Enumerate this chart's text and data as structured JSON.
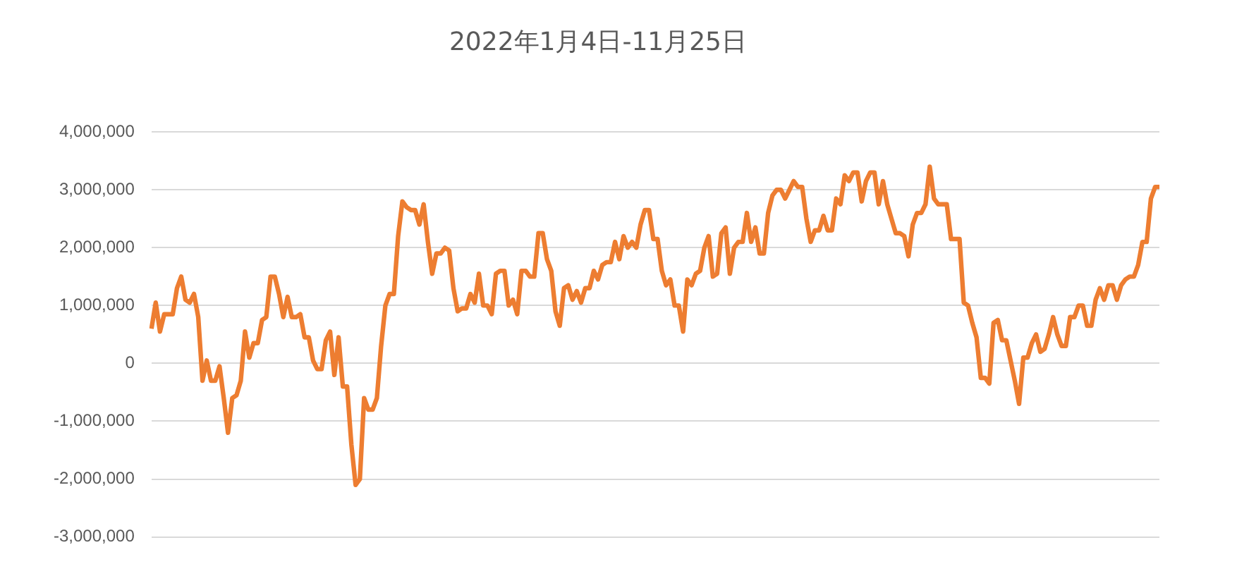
{
  "chart_data": {
    "type": "line",
    "title": "2022年1月4日-11月25日",
    "categories": [
      null,
      null,
      null,
      null,
      null,
      null,
      null,
      null,
      null,
      null,
      null,
      null,
      null,
      null,
      null,
      null,
      null,
      null,
      null,
      null,
      null,
      null,
      null,
      null,
      null,
      null,
      null,
      null,
      null,
      null,
      null,
      null,
      null,
      null,
      null,
      null,
      null,
      null,
      null,
      null,
      null,
      null,
      null,
      null,
      null,
      null,
      null,
      null,
      null,
      null,
      null,
      null,
      null,
      null,
      null,
      null,
      null,
      null,
      null,
      null,
      null,
      null,
      null,
      null,
      null,
      null,
      null,
      null,
      null,
      null,
      null,
      null,
      null,
      null,
      null,
      null,
      null,
      null,
      null,
      null,
      null,
      null,
      null,
      null,
      null,
      null,
      null,
      null,
      null,
      null,
      null,
      null,
      null,
      null,
      null,
      null,
      null,
      null,
      null,
      null,
      null,
      null,
      null,
      null,
      null,
      null,
      null,
      null,
      null,
      null,
      null,
      null,
      null,
      null,
      null,
      null,
      null,
      null,
      null,
      null,
      null,
      null,
      null,
      null,
      null,
      null,
      null,
      null,
      null,
      null,
      null,
      null,
      null,
      null,
      null,
      null,
      null,
      null,
      null,
      null,
      null,
      null,
      null,
      null,
      null,
      null,
      null,
      null,
      null,
      null,
      null,
      null,
      null,
      null,
      null,
      null,
      null,
      null,
      null,
      null,
      null,
      null,
      null,
      null,
      null,
      null,
      null,
      null,
      null,
      null,
      null,
      null,
      null,
      null,
      null,
      null,
      null,
      null,
      null,
      null,
      null,
      null,
      null,
      null,
      null,
      null,
      null,
      null,
      null,
      null,
      null,
      null,
      null,
      null,
      null,
      null,
      null,
      null,
      null,
      null,
      null,
      null,
      null,
      null,
      null,
      null,
      null,
      null,
      null,
      null,
      null,
      null,
      null,
      null,
      null,
      null,
      null,
      null,
      null,
      null,
      null,
      null,
      null,
      null,
      null,
      null,
      null,
      null,
      null,
      null,
      null,
      null,
      null,
      null,
      null,
      null,
      null,
      null
    ],
    "series": [
      {
        "color": "#ed7d31",
        "values": [
          600000,
          1050000,
          550000,
          850000,
          850000,
          850000,
          1300000,
          1500000,
          1100000,
          1050000,
          1200000,
          800000,
          -300000,
          50000,
          -300000,
          -300000,
          -50000,
          -600000,
          -1200000,
          -600000,
          -550000,
          -300000,
          550000,
          100000,
          350000,
          350000,
          750000,
          800000,
          1500000,
          1500000,
          1200000,
          800000,
          1150000,
          800000,
          800000,
          850000,
          450000,
          450000,
          50000,
          -100000,
          -100000,
          400000,
          550000,
          -200000,
          450000,
          -400000,
          -400000,
          -1400000,
          -2100000,
          -2000000,
          -600000,
          -800000,
          -800000,
          -600000,
          300000,
          1000000,
          1200000,
          1200000,
          2200000,
          2800000,
          2700000,
          2650000,
          2650000,
          2400000,
          2750000,
          2100000,
          1550000,
          1900000,
          1900000,
          2000000,
          1950000,
          1300000,
          900000,
          950000,
          950000,
          1200000,
          1050000,
          1550000,
          1000000,
          1000000,
          850000,
          1550000,
          1600000,
          1600000,
          1000000,
          1100000,
          850000,
          1600000,
          1600000,
          1500000,
          1500000,
          2250000,
          2250000,
          1800000,
          1600000,
          900000,
          650000,
          1300000,
          1350000,
          1100000,
          1250000,
          1050000,
          1300000,
          1300000,
          1600000,
          1450000,
          1700000,
          1750000,
          1750000,
          2100000,
          1800000,
          2200000,
          2000000,
          2100000,
          2000000,
          2400000,
          2650000,
          2650000,
          2150000,
          2150000,
          1600000,
          1350000,
          1450000,
          1000000,
          1000000,
          550000,
          1450000,
          1350000,
          1550000,
          1600000,
          2000000,
          2200000,
          1500000,
          1550000,
          2250000,
          2350000,
          1550000,
          2000000,
          2100000,
          2100000,
          2600000,
          2100000,
          2350000,
          1900000,
          1900000,
          2600000,
          2900000,
          3000000,
          3000000,
          2850000,
          3000000,
          3150000,
          3050000,
          3050000,
          2500000,
          2100000,
          2300000,
          2300000,
          2550000,
          2300000,
          2300000,
          2850000,
          2750000,
          3250000,
          3150000,
          3300000,
          3300000,
          2800000,
          3150000,
          3300000,
          3300000,
          2750000,
          3150000,
          2750000,
          2500000,
          2250000,
          2250000,
          2200000,
          1850000,
          2400000,
          2600000,
          2600000,
          2750000,
          3400000,
          2850000,
          2750000,
          2750000,
          2750000,
          2150000,
          2150000,
          2150000,
          1050000,
          1000000,
          700000,
          450000,
          -250000,
          -250000,
          -350000,
          700000,
          750000,
          400000,
          400000,
          50000,
          -300000,
          -700000,
          100000,
          100000,
          350000,
          500000,
          200000,
          250000,
          500000,
          800000,
          500000,
          300000,
          300000,
          800000,
          800000,
          1000000,
          1000000,
          650000,
          650000,
          1100000,
          1300000,
          1100000,
          1350000,
          1350000,
          1100000,
          1350000,
          1450000,
          1500000,
          1500000,
          1700000,
          2100000,
          2100000,
          2850000,
          3050000,
          3050000
        ]
      }
    ],
    "ylim": [
      -3000000,
      4000000
    ],
    "yticks": [
      {
        "value": -3000000,
        "label": "-3,000,000"
      },
      {
        "value": -2000000,
        "label": "-2,000,000"
      },
      {
        "value": -1000000,
        "label": "-1,000,000"
      },
      {
        "value": 0,
        "label": "0"
      },
      {
        "value": 1000000,
        "label": "1,000,000"
      },
      {
        "value": 2000000,
        "label": "2,000,000"
      },
      {
        "value": 3000000,
        "label": "3,000,000"
      },
      {
        "value": 4000000,
        "label": "4,000,000"
      }
    ],
    "grid": "y",
    "legend": false,
    "marker": "none",
    "line_style": "solid"
  }
}
